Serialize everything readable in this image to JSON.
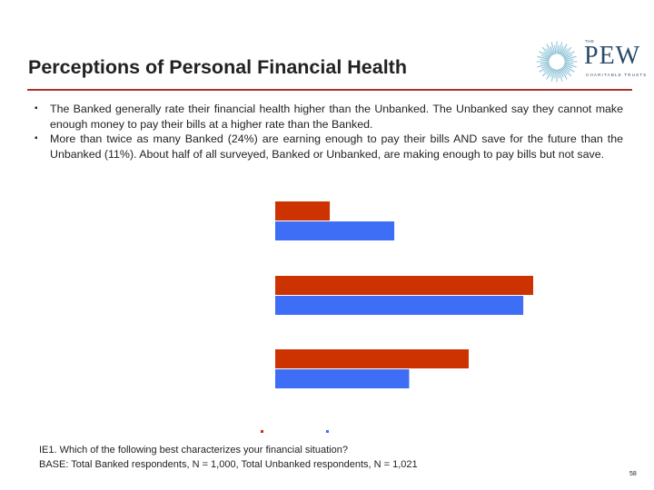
{
  "slide": {
    "title": "Perceptions of Personal Financial Health",
    "bullets": [
      "The Banked generally rate their financial health higher than the Unbanked.  The Unbanked say they cannot make enough money to pay their bills at a higher rate than the Banked.",
      "More than twice as many Banked (24%) are earning enough to pay their bills AND save for the future than the Unbanked (11%).  About half of all surveyed, Banked or Unbanked, are making enough to pay bills but not save."
    ],
    "footnote_question": "IE1. Which of the following best characterizes your financial situation?",
    "footnote_base": "BASE:  Total Banked respondents, N = 1,000, Total Unbanked respondents, N = 1,021",
    "page_number": "58"
  },
  "logo": {
    "the": "THE",
    "word": "PEW",
    "sub": "CHARITABLE TRUSTS",
    "color": "#2a4a6b"
  },
  "chart_data": {
    "type": "bar",
    "orientation": "horizontal",
    "categories": [
      "",
      "",
      ""
    ],
    "series": [
      {
        "color": "#cc3300",
        "values": [
          11,
          52,
          39
        ]
      },
      {
        "color": "#3d6ef5",
        "values": [
          24,
          50,
          27
        ]
      }
    ],
    "xlim": [
      0,
      60
    ],
    "grid": false,
    "legend": "bottom"
  }
}
